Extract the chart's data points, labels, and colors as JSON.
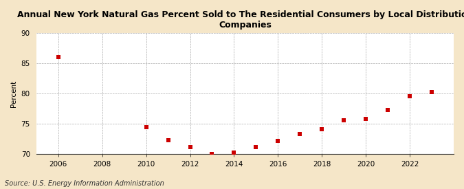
{
  "title": "Annual New York Natural Gas Percent Sold to The Residential Consumers by Local Distribution\nCompanies",
  "ylabel": "Percent",
  "source": "Source: U.S. Energy Information Administration",
  "fig_background_color": "#f5e6c8",
  "plot_background_color": "#ffffff",
  "years": [
    2006,
    2010,
    2011,
    2012,
    2013,
    2014,
    2015,
    2016,
    2017,
    2018,
    2019,
    2020,
    2021,
    2022,
    2023
  ],
  "values": [
    86.1,
    74.5,
    72.3,
    71.2,
    70.1,
    70.3,
    71.2,
    72.2,
    73.3,
    74.1,
    75.6,
    75.8,
    77.3,
    79.6,
    80.3
  ],
  "marker_color": "#cc0000",
  "marker_size": 4,
  "ylim": [
    70,
    90
  ],
  "xlim": [
    2005.0,
    2024.0
  ],
  "yticks": [
    70,
    75,
    80,
    85,
    90
  ],
  "xticks": [
    2006,
    2008,
    2010,
    2012,
    2014,
    2016,
    2018,
    2020,
    2022
  ],
  "grid_color": "#aaaaaa",
  "title_fontsize": 9,
  "axis_fontsize": 7.5,
  "source_fontsize": 7,
  "ylabel_fontsize": 7.5
}
